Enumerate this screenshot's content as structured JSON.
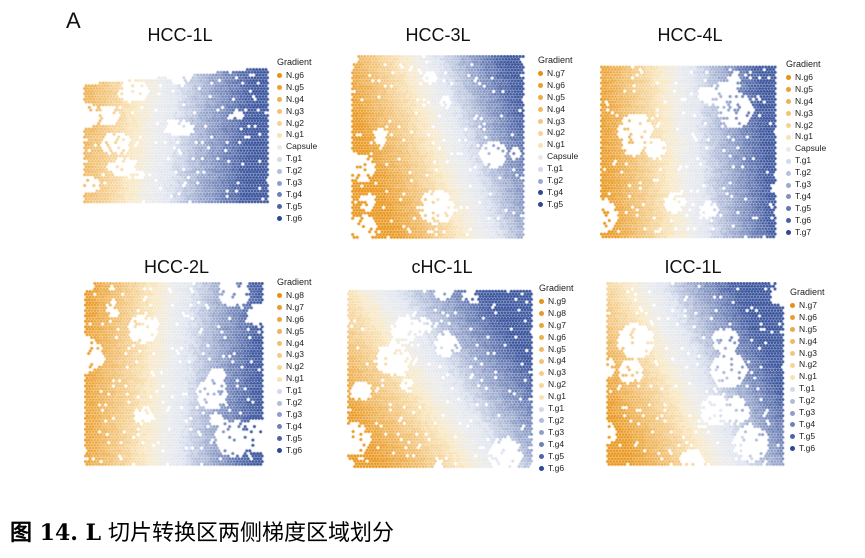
{
  "figure": {
    "panel_label": "A",
    "panels": [
      {
        "title": "HCC-1L",
        "legend_title": "Gradient",
        "legend": [
          "N.g6",
          "N.g5",
          "N.g4",
          "N.g3",
          "N.g2",
          "N.g1",
          "Capsule",
          "T.g1",
          "T.g2",
          "T.g3",
          "T.g4",
          "T.g5",
          "T.g6"
        ]
      },
      {
        "title": "HCC-3L",
        "legend_title": "Gradient",
        "legend": [
          "N.g7",
          "N.g6",
          "N.g5",
          "N.g4",
          "N.g3",
          "N.g2",
          "N.g1",
          "Capsule",
          "T.g1",
          "T.g2",
          "T.g4",
          "T.g5"
        ]
      },
      {
        "title": "HCC-4L",
        "legend_title": "Gradient",
        "legend": [
          "N.g6",
          "N.g5",
          "N.g4",
          "N.g3",
          "N.g2",
          "N.g1",
          "Capsule",
          "T.g1",
          "T.g2",
          "T.g3",
          "T.g4",
          "T.g5",
          "T.g6",
          "T.g7"
        ]
      },
      {
        "title": "HCC-2L",
        "legend_title": "Gradient",
        "legend": [
          "N.g8",
          "N.g7",
          "N.g6",
          "N.g5",
          "N.g4",
          "N.g3",
          "N.g2",
          "N.g1",
          "T.g1",
          "T.g2",
          "T.g3",
          "T.g4",
          "T.g5",
          "T.g6"
        ]
      },
      {
        "title": "cHC-1L",
        "legend_title": "Gradient",
        "legend": [
          "N.g9",
          "N.g8",
          "N.g7",
          "N.g6",
          "N.g5",
          "N.g4",
          "N.g3",
          "N.g2",
          "N.g1",
          "T.g1",
          "T.g2",
          "T.g3",
          "T.g4",
          "T.g5",
          "T.g6"
        ]
      },
      {
        "title": "ICC-1L",
        "legend_title": "Gradient",
        "legend": [
          "N.g7",
          "N.g6",
          "N.g5",
          "N.g4",
          "N.g3",
          "N.g2",
          "N.g1",
          "T.g1",
          "T.g2",
          "T.g3",
          "T.g4",
          "T.g5",
          "T.g6"
        ]
      }
    ]
  },
  "colors": {
    "normal_strong": "#e8900f",
    "normal_light": "#f9e7c0",
    "neutral": "#eaeaea",
    "tumor_light": "#dde3ef",
    "tumor_strong": "#2c4896"
  },
  "caption": {
    "figure_number": "图 14. L",
    "text": " 切片转换区两侧梯度区域划分"
  }
}
